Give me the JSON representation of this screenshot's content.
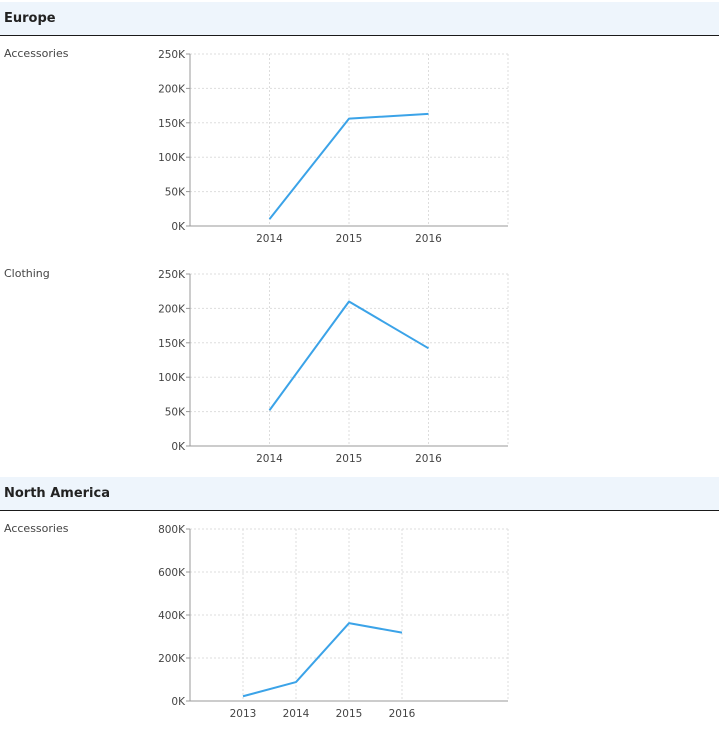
{
  "chart_data": [
    {
      "type": "line",
      "group": "Europe",
      "row_label": "Accessories",
      "categories": [
        "2014",
        "2015",
        "2016"
      ],
      "values": [
        10000,
        156000,
        163000
      ],
      "ylim": [
        0,
        250000
      ],
      "yticks": [
        {
          "value": 0,
          "label": "0K"
        },
        {
          "value": 50000,
          "label": "50K"
        },
        {
          "value": 100000,
          "label": "100K"
        },
        {
          "value": 150000,
          "label": "150K"
        },
        {
          "value": 200000,
          "label": "200K"
        },
        {
          "value": 250000,
          "label": "250K"
        }
      ],
      "grid": true,
      "line_color": "#3ba3e8"
    },
    {
      "type": "line",
      "group": "Europe",
      "row_label": "Clothing",
      "categories": [
        "2014",
        "2015",
        "2016"
      ],
      "values": [
        52000,
        210000,
        142000
      ],
      "ylim": [
        0,
        250000
      ],
      "yticks": [
        {
          "value": 0,
          "label": "0K"
        },
        {
          "value": 50000,
          "label": "50K"
        },
        {
          "value": 100000,
          "label": "100K"
        },
        {
          "value": 150000,
          "label": "150K"
        },
        {
          "value": 200000,
          "label": "200K"
        },
        {
          "value": 250000,
          "label": "250K"
        }
      ],
      "grid": true,
      "line_color": "#3ba3e8"
    },
    {
      "type": "line",
      "group": "North America",
      "row_label": "Accessories",
      "categories": [
        "2013",
        "2014",
        "2015",
        "2016"
      ],
      "values": [
        22000,
        88000,
        362000,
        318000
      ],
      "ylim": [
        0,
        800000
      ],
      "yticks": [
        {
          "value": 0,
          "label": "0K"
        },
        {
          "value": 200000,
          "label": "200K"
        },
        {
          "value": 400000,
          "label": "400K"
        },
        {
          "value": 600000,
          "label": "600K"
        },
        {
          "value": 800000,
          "label": "800K"
        }
      ],
      "grid": true,
      "line_color": "#3ba3e8"
    }
  ],
  "groups": [
    {
      "title": "Europe"
    },
    {
      "title": "North America"
    }
  ],
  "colors": {
    "header_bg": "#eef5fc",
    "header_border": "#1a1a1a",
    "grid": "#dddddd",
    "axis": "#999999",
    "line": "#3ba3e8"
  }
}
